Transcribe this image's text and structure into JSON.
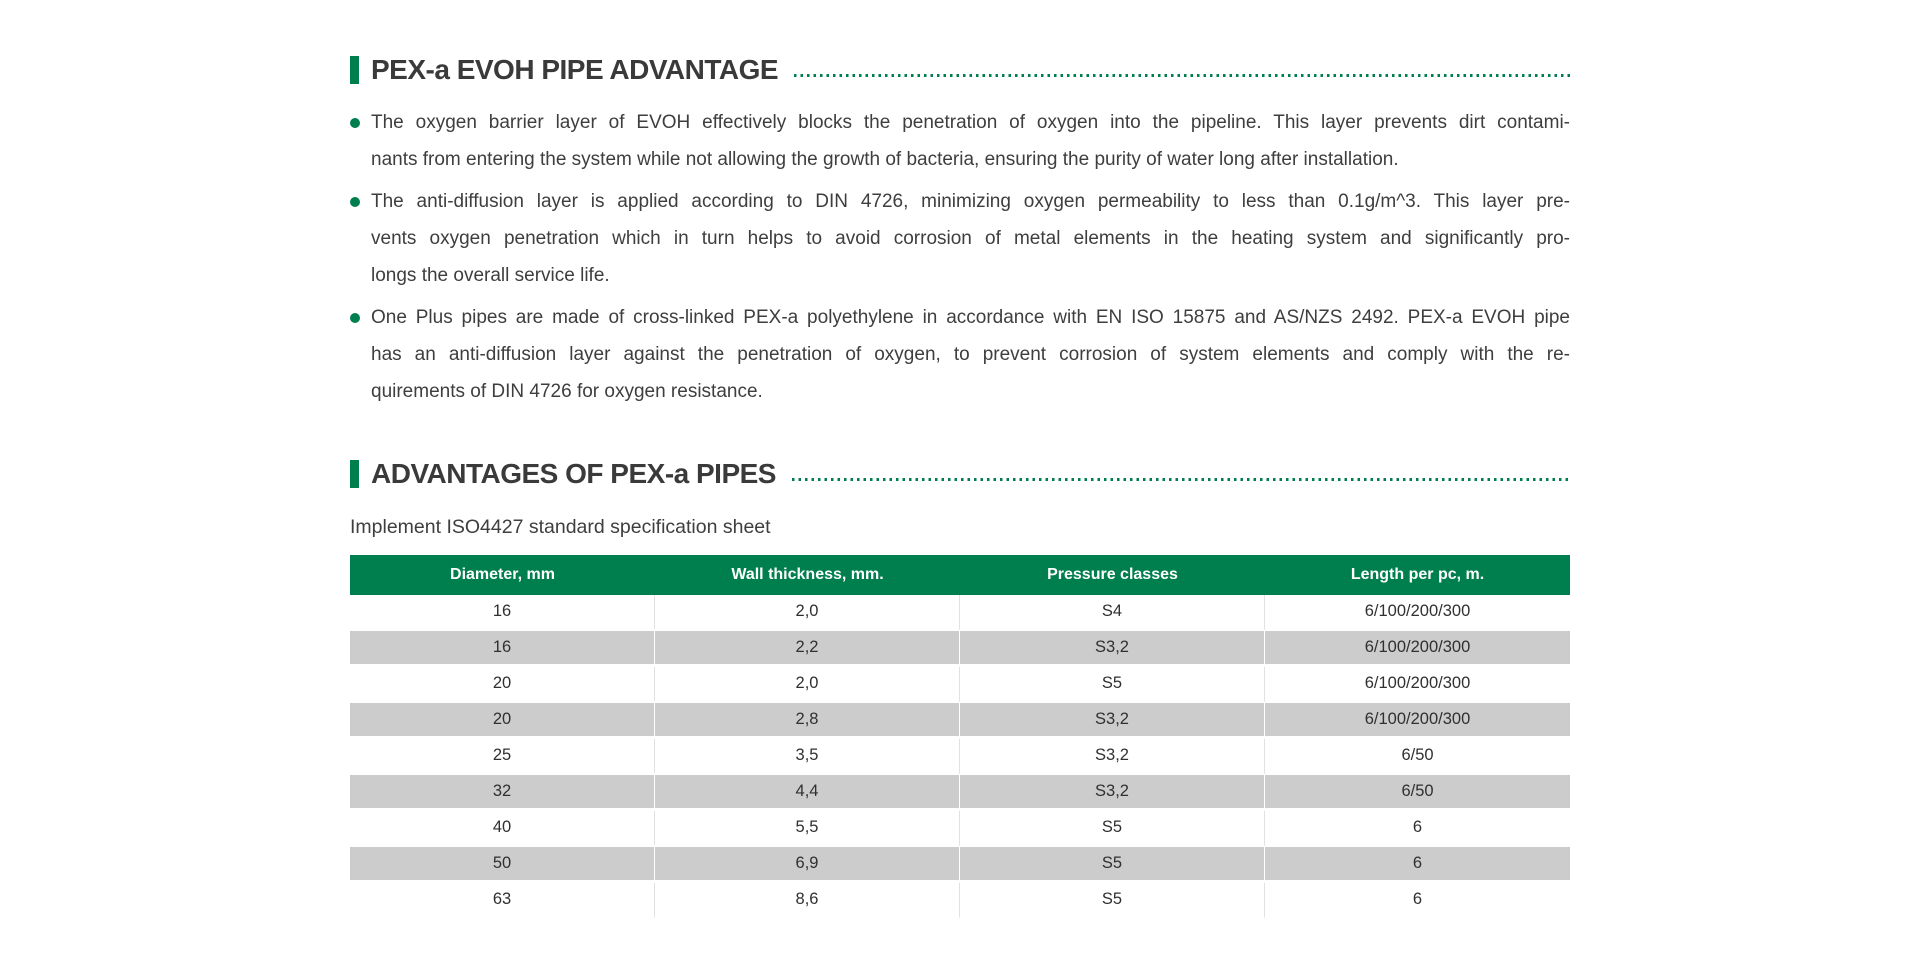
{
  "colors": {
    "accent_green": "#007F4E",
    "row_alternate_gray": "#CCCCCC",
    "table_header_text": "#FFFFFF",
    "body_text": "#3E3E3E"
  },
  "sections": [
    {
      "heading": "PEX-a EVOH PIPE ADVANTAGE",
      "bullets": [
        {
          "lines": [
            "The oxygen barrier layer of EVOH effectively blocks the penetration of oxygen into the pipeline. This layer prevents dirt contami-",
            "nants from entering the system while not allowing the growth of bacteria, ensuring the purity of water long after installation."
          ]
        },
        {
          "lines": [
            "The anti-diffusion layer is applied according to DIN 4726, minimizing oxygen permeability to less than 0.1g/m^3. This layer pre-",
            "vents oxygen penetration which in turn helps to avoid corrosion of metal elements in the heating system and significantly pro-",
            "longs the overall service life."
          ]
        },
        {
          "lines": [
            "One Plus pipes are made of cross-linked PEX-a polyethylene in accordance with EN ISO 15875 and AS/NZS 2492. PEX-a EVOH pipe",
            "has an anti-diffusion layer against the penetration of oxygen, to prevent corrosion of system elements and comply with the re-",
            "quirements of DIN 4726 for oxygen resistance."
          ]
        }
      ]
    },
    {
      "heading": "ADVANTAGES OF PEX-a PIPES",
      "subtitle": "Implement ISO4427 standard specification sheet",
      "table": {
        "headers": [
          "Diameter, mm",
          "Wall thickness, mm.",
          "Pressure classes",
          "Length per pc, m."
        ],
        "rows": [
          [
            "16",
            "2,0",
            "S4",
            "6/100/200/300"
          ],
          [
            "16",
            "2,2",
            "S3,2",
            "6/100/200/300"
          ],
          [
            "20",
            "2,0",
            "S5",
            "6/100/200/300"
          ],
          [
            "20",
            "2,8",
            "S3,2",
            "6/100/200/300"
          ],
          [
            "25",
            "3,5",
            "S3,2",
            "6/50"
          ],
          [
            "32",
            "4,4",
            "S3,2",
            "6/50"
          ],
          [
            "40",
            "5,5",
            "S5",
            "6"
          ],
          [
            "50",
            "6,9",
            "S5",
            "6"
          ],
          [
            "63",
            "8,6",
            "S5",
            "6"
          ]
        ]
      }
    }
  ]
}
